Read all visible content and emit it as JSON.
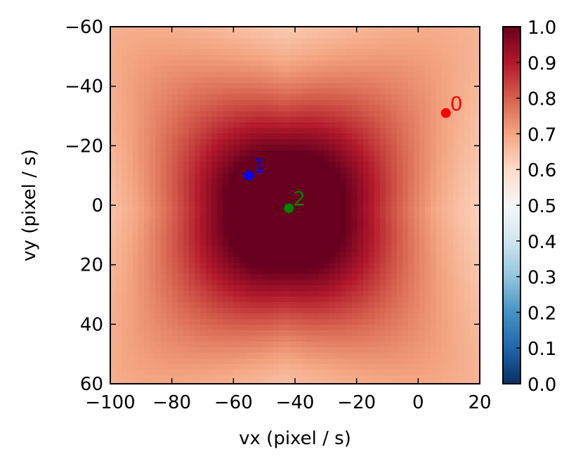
{
  "chart_data": {
    "type": "heatmap",
    "title": "",
    "xlabel": "vx (pixel / s)",
    "ylabel": "vy (pixel / s)",
    "xlim": [
      -100,
      20
    ],
    "ylim": [
      60,
      -60
    ],
    "y_inverted": true,
    "xticks": [
      -100,
      -80,
      -60,
      -40,
      -20,
      0,
      20
    ],
    "xtick_labels": [
      "−100",
      "−80",
      "−60",
      "−40",
      "−20",
      "0",
      "20"
    ],
    "yticks": [
      -60,
      -40,
      -20,
      0,
      20,
      40,
      60
    ],
    "ytick_labels": [
      "−60",
      "−40",
      "−20",
      "0",
      "20",
      "40",
      "60"
    ],
    "colormap": "RdBu_r",
    "colorbar": {
      "range": [
        0.0,
        1.0
      ],
      "ticks": [
        0.0,
        0.1,
        0.2,
        0.3,
        0.4,
        0.5,
        0.6,
        0.7,
        0.8,
        0.9,
        1.0
      ],
      "tick_labels": [
        "0.0",
        "0.1",
        "0.2",
        "0.3",
        "0.4",
        "0.5",
        "0.6",
        "0.7",
        "0.8",
        "0.9",
        "1.0"
      ]
    },
    "field": {
      "peak_value": 1.0,
      "peak_at": [
        -43,
        2
      ],
      "edge_min_value": 0.45
    },
    "points": [
      {
        "label": "0",
        "vx": 9,
        "vy": -31,
        "color": "#ff0000"
      },
      {
        "label": "1",
        "vx": -55,
        "vy": -10,
        "color": "#0000ff"
      },
      {
        "label": "2",
        "vx": -42,
        "vy": 1,
        "color": "#008000"
      }
    ],
    "grid": false
  }
}
